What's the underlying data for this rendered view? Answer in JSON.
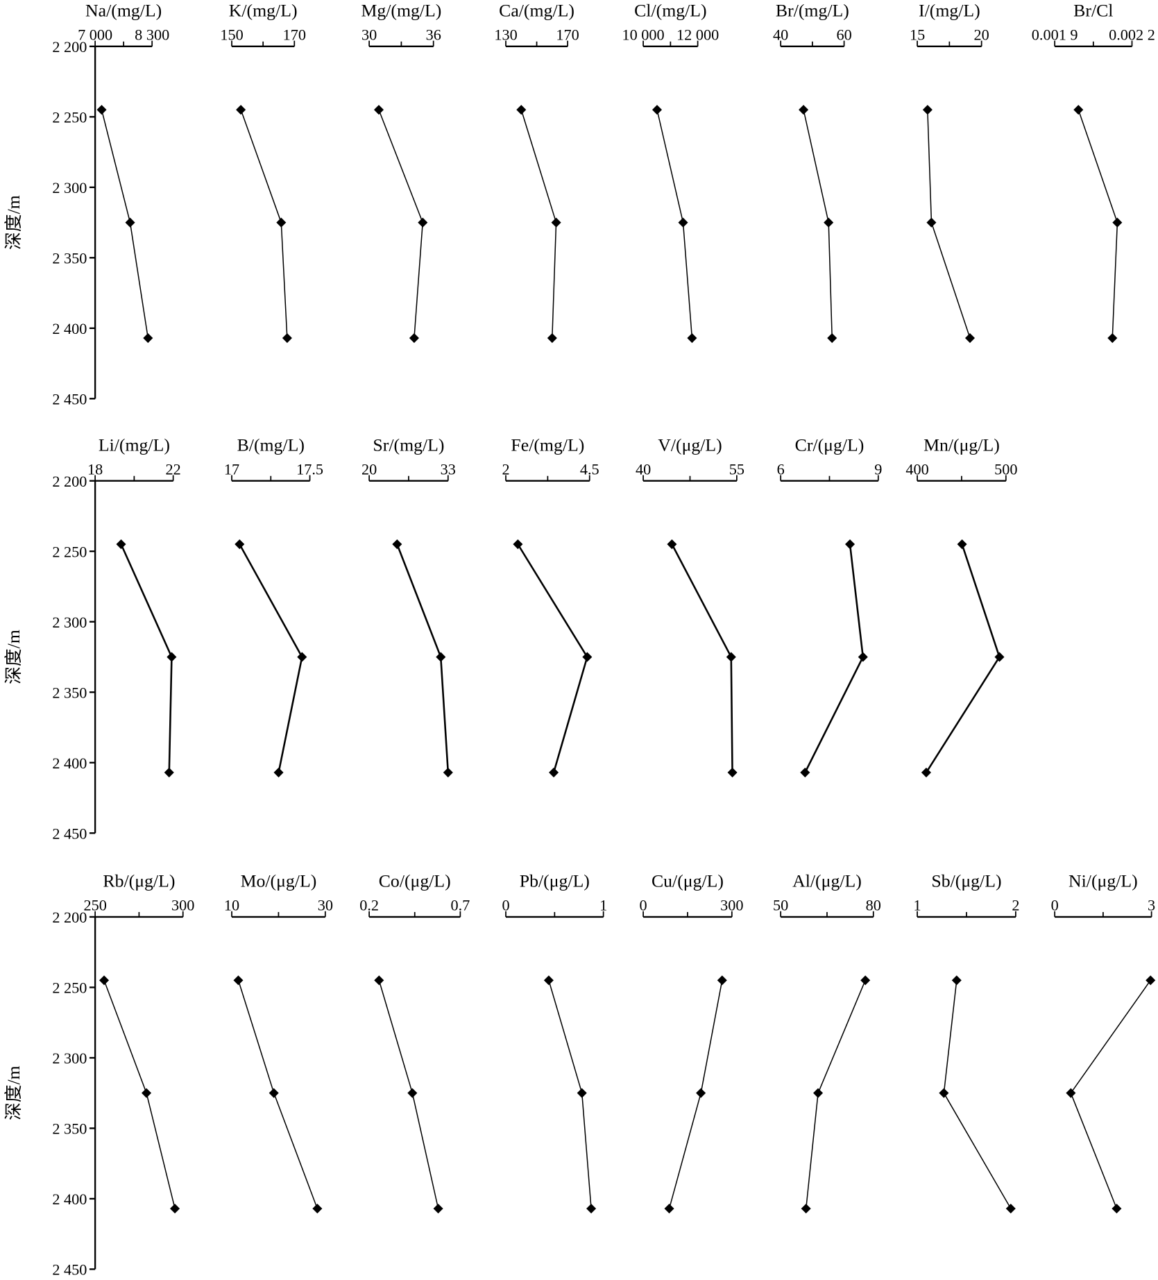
{
  "chart_data": [
    {
      "type": "line",
      "ylabel": "深度/m",
      "ylim": [
        2200,
        2450
      ],
      "y_inverted": true,
      "yticks": [
        {
          "value": 2200,
          "label": "2 200"
        },
        {
          "value": 2250,
          "label": "2 250"
        },
        {
          "value": 2300,
          "label": "2 300"
        },
        {
          "value": 2350,
          "label": "2 350"
        },
        {
          "value": 2400,
          "label": "2 400"
        },
        {
          "value": 2450,
          "label": "2 450"
        }
      ],
      "color": "#000000",
      "panels": [
        {
          "title": "Na/(mg/L)",
          "xlim": [
            7000,
            8300
          ],
          "xticks": [
            {
              "value": 7000,
              "label": "7 000"
            },
            {
              "value": 8300,
              "label": "8 300"
            }
          ],
          "depth": [
            2245,
            2325,
            2407
          ],
          "values": [
            7149,
            7799,
            8207
          ]
        },
        {
          "title": "K/(mg/L)",
          "xlim": [
            150,
            170
          ],
          "xticks": [
            150,
            170
          ],
          "depth": [
            2245,
            2325,
            2407
          ],
          "values": [
            152.9,
            165.8,
            167.7
          ]
        },
        {
          "title": "Mg/(mg/L)",
          "xlim": [
            30,
            36
          ],
          "xticks": [
            30,
            36
          ],
          "depth": [
            2245,
            2325,
            2407
          ],
          "values": [
            30.9,
            35.0,
            34.2
          ]
        },
        {
          "title": "Ca/(mg/L)",
          "xlim": [
            130,
            170
          ],
          "xticks": [
            130,
            170
          ],
          "depth": [
            2245,
            2325,
            2407
          ],
          "values": [
            140,
            162.6,
            160
          ]
        },
        {
          "title": "Cl/(mg/L)",
          "xlim": [
            10000,
            12000
          ],
          "xticks": [
            {
              "value": 10000,
              "label": "10 000"
            },
            {
              "value": 12000,
              "label": "12 000"
            }
          ],
          "depth": [
            2245,
            2325,
            2407
          ],
          "values": [
            10507,
            11463,
            11791
          ]
        },
        {
          "title": "Br/(mg/L)",
          "xlim": [
            40,
            60
          ],
          "xticks": [
            40,
            60
          ],
          "depth": [
            2245,
            2325,
            2407
          ],
          "values": [
            47.2,
            55.1,
            56.2
          ]
        },
        {
          "title": "I/(mg/L)",
          "xlim": [
            15,
            20
          ],
          "xticks": [
            15,
            20
          ],
          "depth": [
            2245,
            2325,
            2407
          ],
          "values": [
            15.8,
            16.1,
            19.1
          ]
        },
        {
          "title": "Br/Cl",
          "xlim": [
            0.0019,
            0.0022
          ],
          "xticks": [
            {
              "value": 0.0019,
              "label": "0.001 9"
            },
            {
              "value": 0.0022,
              "label": "0.002 2"
            }
          ],
          "depth": [
            2245,
            2325,
            2407
          ],
          "values": [
            0.001992,
            0.002143,
            0.002124
          ]
        }
      ]
    },
    {
      "type": "line",
      "ylabel": "深度/m",
      "ylim": [
        2200,
        2450
      ],
      "y_inverted": true,
      "yticks": [
        {
          "value": 2200,
          "label": "2 200"
        },
        {
          "value": 2250,
          "label": "2 250"
        },
        {
          "value": 2300,
          "label": "2 300"
        },
        {
          "value": 2350,
          "label": "2 350"
        },
        {
          "value": 2400,
          "label": "2 400"
        },
        {
          "value": 2450,
          "label": "2 450"
        }
      ],
      "color": "#000000",
      "panels": [
        {
          "title": "Li/(mg/L)",
          "xlim": [
            18,
            22
          ],
          "xticks": [
            18,
            22
          ],
          "depth": [
            2245,
            2325,
            2407
          ],
          "values": [
            19.33,
            21.92,
            21.79
          ]
        },
        {
          "title": "B/(mg/L)",
          "xlim": [
            17,
            17.5
          ],
          "xticks": [
            17,
            17.5
          ],
          "depth": [
            2245,
            2325,
            2407
          ],
          "values": [
            17.05,
            17.45,
            17.3
          ]
        },
        {
          "title": "Sr/(mg/L)",
          "xlim": [
            20,
            33
          ],
          "xticks": [
            20,
            33
          ],
          "depth": [
            2245,
            2325,
            2407
          ],
          "values": [
            24.6,
            31.8,
            33.0
          ]
        },
        {
          "title": "Fe/(mg/L)",
          "xlim": [
            2,
            4.5
          ],
          "xticks": [
            2,
            4.5
          ],
          "depth": [
            2245,
            2325,
            2407
          ],
          "values": [
            2.36,
            4.43,
            3.43
          ]
        },
        {
          "title": "V/(μg/L)",
          "xlim": [
            40,
            55
          ],
          "xticks": [
            40,
            55
          ],
          "depth": [
            2245,
            2325,
            2407
          ],
          "values": [
            44.6,
            54.1,
            54.3
          ]
        },
        {
          "title": "Cr/(μg/L)",
          "xlim": [
            6,
            9
          ],
          "xticks": [
            6,
            9
          ],
          "depth": [
            2245,
            2325,
            2407
          ],
          "values": [
            8.13,
            8.53,
            6.75
          ]
        },
        {
          "title": "Mn/(μg/L)",
          "xlim": [
            400,
            500
          ],
          "xticks": [
            400,
            500
          ],
          "depth": [
            2245,
            2325,
            2407
          ],
          "values": [
            450.5,
            492.7,
            410.1
          ]
        }
      ]
    },
    {
      "type": "line",
      "ylabel": "深度/m",
      "ylim": [
        2200,
        2450
      ],
      "y_inverted": true,
      "yticks": [
        {
          "value": 2200,
          "label": "2 200"
        },
        {
          "value": 2250,
          "label": "2 250"
        },
        {
          "value": 2300,
          "label": "2 300"
        },
        {
          "value": 2350,
          "label": "2 350"
        },
        {
          "value": 2400,
          "label": "2 400"
        },
        {
          "value": 2450,
          "label": "2 450"
        }
      ],
      "color": "#000000",
      "panels": [
        {
          "title": "Rb/(μg/L)",
          "xlim": [
            250,
            300
          ],
          "xticks": [
            250,
            300
          ],
          "depth": [
            2245,
            2325,
            2407
          ],
          "values": [
            255.1,
            279.2,
            295.4
          ]
        },
        {
          "title": "Mo/(μg/L)",
          "xlim": [
            10,
            30
          ],
          "xticks": [
            10,
            30
          ],
          "depth": [
            2245,
            2325,
            2407
          ],
          "values": [
            11.4,
            19.0,
            28.3
          ]
        },
        {
          "title": "Co/(μg/L)",
          "xlim": [
            0.2,
            0.7
          ],
          "xticks": [
            0.2,
            0.7
          ],
          "depth": [
            2245,
            2325,
            2407
          ],
          "values": [
            0.254,
            0.437,
            0.579
          ]
        },
        {
          "title": "Pb/(μg/L)",
          "xlim": [
            0,
            1
          ],
          "xticks": [
            0,
            1
          ],
          "depth": [
            2245,
            2325,
            2407
          ],
          "values": [
            0.44,
            0.78,
            0.875
          ]
        },
        {
          "title": "Cu/(μg/L)",
          "xlim": [
            0,
            300
          ],
          "xticks": [
            0,
            300
          ],
          "depth": [
            2245,
            2325,
            2407
          ],
          "values": [
            267,
            195,
            88
          ]
        },
        {
          "title": "Al/(μg/L)",
          "xlim": [
            50,
            80
          ],
          "xticks": [
            50,
            80
          ],
          "depth": [
            2245,
            2325,
            2407
          ],
          "values": [
            77.4,
            62.1,
            58.2
          ]
        },
        {
          "title": "Sb/(μg/L)",
          "xlim": [
            1,
            2
          ],
          "xticks": [
            1,
            2
          ],
          "depth": [
            2245,
            2325,
            2407
          ],
          "values": [
            1.4,
            1.27,
            1.95
          ]
        },
        {
          "title": "Ni/(μg/L)",
          "xlim": [
            0,
            3
          ],
          "xticks": [
            0,
            3
          ],
          "depth": [
            2245,
            2325,
            2407
          ],
          "values": [
            2.97,
            0.5,
            1.92
          ]
        }
      ]
    }
  ]
}
